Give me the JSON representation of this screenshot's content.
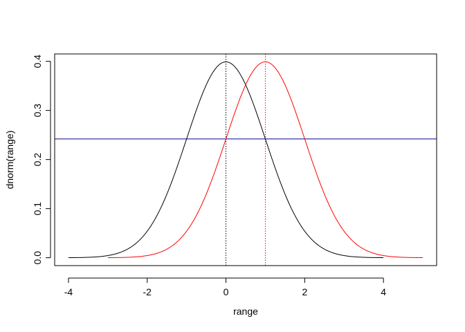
{
  "chart_data": {
    "type": "line",
    "title": "",
    "xlabel": "range",
    "ylabel": "dnorm(range)",
    "xlim": [
      -4.35,
      5.35
    ],
    "ylim": [
      -0.016,
      0.415
    ],
    "x_ticks": [
      -4,
      -2,
      0,
      2,
      4
    ],
    "x_tick_labels": [
      "-4",
      "-2",
      "0",
      "2",
      "4"
    ],
    "y_ticks": [
      0.0,
      0.1,
      0.2,
      0.3,
      0.4
    ],
    "y_tick_labels": [
      "0.0",
      "0.1",
      "0.2",
      "0.3",
      "0.4"
    ],
    "grid": false,
    "legend": "none",
    "series": [
      {
        "kind": "density",
        "color": "#000000",
        "x": [
          -4.0,
          -3.5,
          -3.0,
          -2.5,
          -2.0,
          -1.5,
          -1.0,
          -0.5,
          0.0,
          0.5,
          1.0,
          1.5,
          2.0,
          2.5,
          3.0,
          3.5,
          4.0
        ],
        "y": [
          0.0001,
          0.0009,
          0.0044,
          0.0175,
          0.054,
          0.1295,
          0.242,
          0.3521,
          0.3989,
          0.3521,
          0.242,
          0.1295,
          0.054,
          0.0175,
          0.0044,
          0.0009,
          0.0001
        ]
      },
      {
        "kind": "density",
        "color": "#ff0000",
        "x": [
          -3.0,
          -2.5,
          -2.0,
          -1.5,
          -1.0,
          -0.5,
          0.0,
          0.5,
          1.0,
          1.5,
          2.0,
          2.5,
          3.0,
          3.5,
          4.0,
          4.5,
          5.0
        ],
        "y": [
          0.0001,
          0.0009,
          0.0044,
          0.0175,
          0.054,
          0.1295,
          0.242,
          0.3521,
          0.3989,
          0.3521,
          0.242,
          0.1295,
          0.054,
          0.0175,
          0.0044,
          0.0009,
          0.0001
        ]
      }
    ],
    "reference_lines": [
      {
        "orientation": "vertical",
        "value": 0,
        "color": "#000000",
        "style": "dotted"
      },
      {
        "orientation": "vertical",
        "value": 1,
        "color": "#ff0000",
        "style": "dotted"
      },
      {
        "orientation": "horizontal",
        "value": 0.242,
        "color": "#00008b",
        "style": "solid"
      }
    ]
  }
}
